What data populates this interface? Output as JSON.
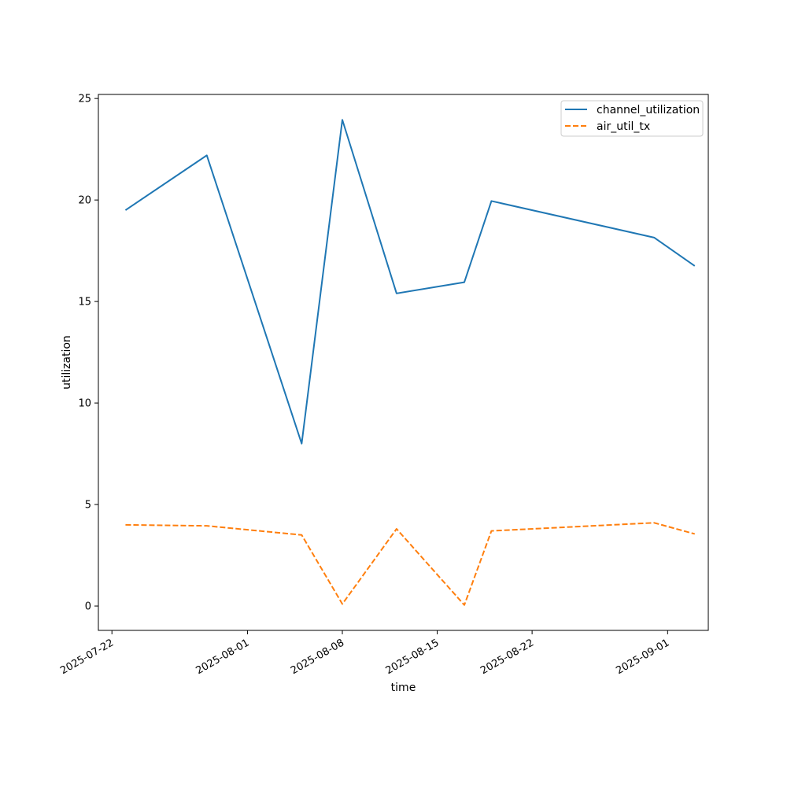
{
  "chart_data": {
    "type": "line",
    "title": "",
    "xlabel": "time",
    "ylabel": "utilization",
    "x_type": "date",
    "xlim": [
      "2025-07-21",
      "2025-09-04"
    ],
    "ylim": [
      -1.2,
      25.2
    ],
    "x_ticks": [
      "2025-07-22",
      "2025-08-01",
      "2025-08-08",
      "2025-08-15",
      "2025-08-22",
      "2025-09-01"
    ],
    "y_ticks": [
      0,
      5,
      10,
      15,
      20,
      25
    ],
    "grid": false,
    "legend_position": "top-right",
    "x": [
      "2025-07-23",
      "2025-07-29",
      "2025-08-05",
      "2025-08-08",
      "2025-08-12",
      "2025-08-17",
      "2025-08-19",
      "2025-08-31",
      "2025-09-03"
    ],
    "series": [
      {
        "name": "channel_utilization",
        "color": "#1f77b4",
        "style": "solid",
        "values": [
          19.5,
          22.2,
          8.0,
          23.95,
          15.4,
          15.95,
          19.95,
          18.15,
          16.75
        ]
      },
      {
        "name": "air_util_tx",
        "color": "#ff7f0e",
        "style": "dashed",
        "values": [
          4.0,
          3.95,
          3.5,
          0.1,
          3.8,
          0.05,
          3.7,
          4.1,
          3.55
        ]
      }
    ]
  }
}
